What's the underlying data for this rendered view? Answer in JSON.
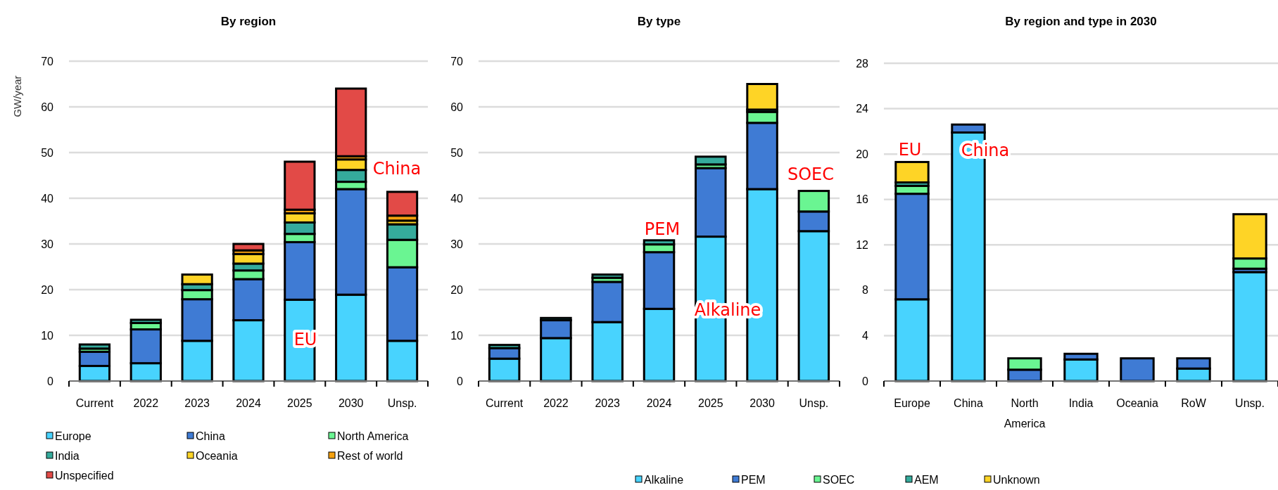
{
  "chart_data": [
    {
      "type": "bar",
      "title": "By region",
      "ylabel": "GW/year",
      "stacked": true,
      "grid": "y",
      "legend": "bottom",
      "categories": [
        "Current",
        "2022",
        "2023",
        "2024",
        "2025",
        "2030",
        "Unsp."
      ],
      "ylim": [
        0,
        70
      ],
      "yticks": [
        0,
        10,
        20,
        30,
        40,
        50,
        60,
        70
      ],
      "series": [
        {
          "name": "Europe",
          "color": "#48d3fe",
          "values": [
            3.3,
            3.9,
            8.8,
            13.3,
            17.8,
            18.9,
            8.8
          ]
        },
        {
          "name": "China",
          "color": "#3f7bd4",
          "values": [
            3.1,
            7.4,
            9.1,
            9.0,
            12.6,
            23.1,
            16.1
          ]
        },
        {
          "name": "North America",
          "color": "#6af592",
          "values": [
            0.7,
            1.4,
            2.0,
            1.9,
            1.8,
            1.6,
            6.0
          ]
        },
        {
          "name": "India",
          "color": "#35ab9c",
          "values": [
            0.9,
            0.7,
            1.3,
            1.5,
            2.5,
            2.6,
            3.4
          ]
        },
        {
          "name": "Oceania",
          "color": "#fed426",
          "values": [
            0,
            0,
            2.1,
            2.1,
            2.0,
            2.3,
            0.8
          ]
        },
        {
          "name": "Rest of world",
          "color": "#f5a10f",
          "values": [
            0,
            0,
            0,
            0.8,
            0.8,
            0.7,
            1.1
          ]
        },
        {
          "name": "Unspecified",
          "color": "#e24a47",
          "values": [
            0,
            0,
            0,
            1.4,
            10.5,
            14.8,
            5.2
          ]
        }
      ],
      "annotations": [
        "EU",
        "China"
      ]
    },
    {
      "type": "bar",
      "title": "By type",
      "stacked": true,
      "grid": "y",
      "legend": "bottom",
      "categories": [
        "Current",
        "2022",
        "2023",
        "2024",
        "2025",
        "2030",
        "Unsp."
      ],
      "ylim": [
        0,
        70
      ],
      "yticks": [
        0,
        10,
        20,
        30,
        40,
        50,
        60,
        70
      ],
      "series": [
        {
          "name": "Alkaline",
          "color": "#48d3fe",
          "values": [
            4.9,
            9.4,
            12.9,
            15.8,
            31.6,
            42.0,
            32.8
          ]
        },
        {
          "name": "PEM",
          "color": "#3f7bd4",
          "values": [
            2.3,
            3.9,
            8.8,
            12.4,
            15.0,
            14.5,
            4.3
          ]
        },
        {
          "name": "SOEC",
          "color": "#6af592",
          "values": [
            0,
            0,
            0.9,
            1.7,
            0.8,
            2.4,
            4.5
          ]
        },
        {
          "name": "AEM",
          "color": "#35ab9c",
          "values": [
            0.7,
            0.5,
            0.7,
            0.9,
            1.7,
            0.5,
            0
          ]
        },
        {
          "name": "Unknown",
          "color": "#fed426",
          "values": [
            0,
            0,
            0,
            0,
            0,
            5.6,
            0
          ]
        }
      ],
      "annotations": [
        "PEM",
        "Alkaline",
        "SOEC"
      ]
    },
    {
      "type": "bar",
      "title": "By region and type in 2030",
      "stacked": true,
      "grid": "y",
      "categories": [
        "Europe",
        "China",
        "North America",
        "India",
        "Oceania",
        "RoW",
        "Unsp."
      ],
      "ylim": [
        0,
        28
      ],
      "yticks": [
        0,
        4,
        8,
        12,
        16,
        20,
        24,
        28
      ],
      "series": [
        {
          "color": "#48d3fe",
          "values": [
            7.2,
            21.9,
            0,
            1.9,
            0,
            1.1,
            9.6
          ]
        },
        {
          "color": "#3f7bd4",
          "values": [
            9.3,
            0.7,
            1.0,
            0.5,
            2.0,
            0.9,
            0.3
          ]
        },
        {
          "color": "#6af592",
          "values": [
            0.7,
            0,
            1.0,
            0,
            0,
            0,
            0.9
          ]
        },
        {
          "color": "#35ab9c",
          "values": [
            0.3,
            0,
            0,
            0,
            0,
            0,
            0
          ]
        },
        {
          "color": "#fed426",
          "values": [
            1.8,
            0,
            0,
            0,
            0,
            0,
            3.9
          ]
        }
      ],
      "annotations": [
        "EU",
        "China"
      ]
    }
  ]
}
